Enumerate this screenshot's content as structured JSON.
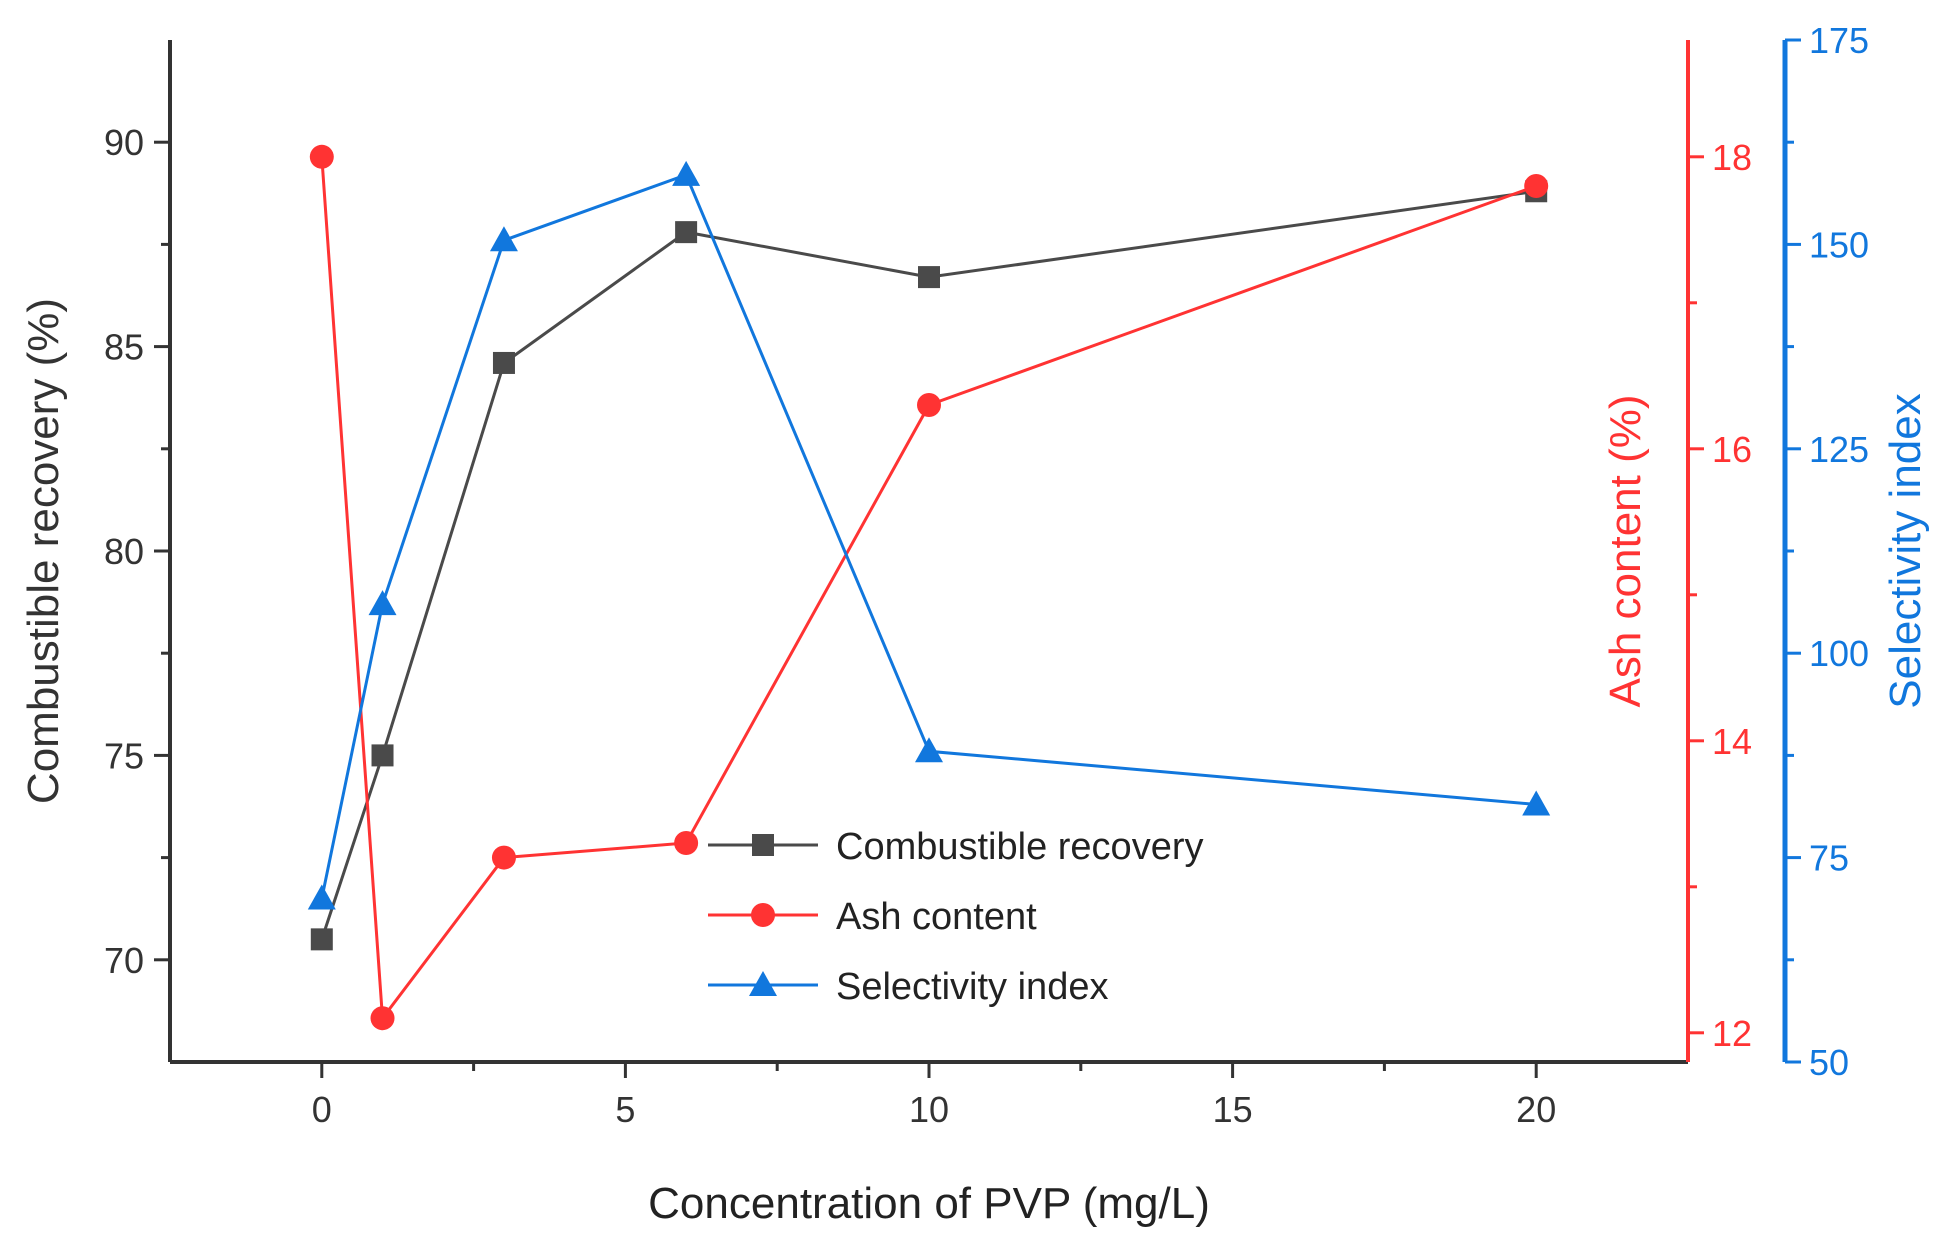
{
  "chart_data": {
    "type": "line",
    "title": "",
    "xlabel": "Concentration of PVP (mg/L)",
    "x": [
      0,
      1,
      3,
      6,
      10,
      20
    ],
    "xlim": [
      -2.5,
      22.5
    ],
    "x_major_ticks": [
      0,
      5,
      10,
      15,
      20
    ],
    "x_tick_labels": [
      "0",
      "5",
      "10",
      "15",
      "20"
    ],
    "axes": [
      {
        "id": "left",
        "label": "Combustible recovery (%)",
        "range": [
          67.5,
          92.5
        ],
        "ticks": [
          70,
          75,
          80,
          85,
          90
        ],
        "tick_labels": [
          "70",
          "75",
          "80",
          "85",
          "90"
        ],
        "color": "#333333"
      },
      {
        "id": "right1",
        "label": "Ash content (%)",
        "range": [
          11.8,
          18.8
        ],
        "ticks": [
          12,
          14,
          16,
          18
        ],
        "tick_labels": [
          "12",
          "14",
          "16",
          "18"
        ],
        "color": "#ff3333"
      },
      {
        "id": "right2",
        "label": "Selectivity index",
        "range": [
          50,
          175
        ],
        "ticks": [
          50,
          75,
          100,
          125,
          150,
          175
        ],
        "tick_labels": [
          "50",
          "75",
          "100",
          "125",
          "150",
          "175"
        ],
        "color": "#1177dd"
      }
    ],
    "series": [
      {
        "name": "Combustible recovery",
        "axis": "left",
        "marker": "square",
        "color": "#4a4a4a",
        "values": [
          70.5,
          75.0,
          84.6,
          87.8,
          86.7,
          88.8
        ]
      },
      {
        "name": "Ash content",
        "axis": "right1",
        "marker": "circle",
        "color": "#ff3333",
        "values": [
          18.0,
          12.1,
          13.2,
          13.3,
          16.3,
          17.8
        ]
      },
      {
        "name": "Selectivity index",
        "axis": "right2",
        "marker": "triangle",
        "color": "#1177dd",
        "values": [
          70.0,
          106.0,
          150.5,
          158.5,
          88.0,
          81.5
        ]
      }
    ],
    "legend": {
      "position": "bottom-center",
      "entries": [
        "Combustible recovery",
        "Ash content",
        "Selectivity index"
      ]
    },
    "grid": false
  }
}
